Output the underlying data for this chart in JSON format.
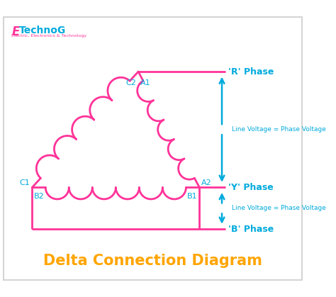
{
  "title": "Delta Connection Diagram",
  "title_color": "#FFA500",
  "title_fontsize": 15,
  "background_color": "#ffffff",
  "border_color": "#cccccc",
  "coil_color": "#FF3399",
  "wire_color": "#FF3399",
  "arrow_color": "#00AADD",
  "label_color": "#00AADD",
  "logo_E_color": "#FF3399",
  "logo_text_color": "#00AADD",
  "logo_sub_color": "#FF3399",
  "phase_labels": [
    "'R' Phase",
    "'Y' Phase",
    "'B' Phase"
  ],
  "voltage_label": "Line Voltage = Phase Voltage",
  "figsize": [
    4.74,
    4.19
  ],
  "dpi": 100
}
